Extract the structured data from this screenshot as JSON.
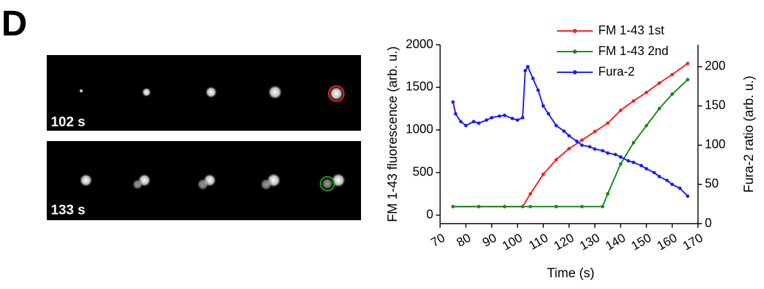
{
  "panel_label": "D",
  "images": [
    {
      "label": "102 s"
    },
    {
      "label": "133 s"
    }
  ],
  "chart_data": {
    "type": "line",
    "ylabel": "FM 1-43 fluorescence (arb. u.)",
    "y2label": "Fura-2 ratio (arb. u.)",
    "xlabel": "Time (s)",
    "xlim": [
      70,
      170
    ],
    "xticks": [
      70,
      80,
      90,
      100,
      110,
      120,
      130,
      140,
      150,
      160,
      170
    ],
    "ylim": [
      -100,
      2000
    ],
    "yticks": [
      0,
      500,
      1000,
      1500,
      2000
    ],
    "y2lim": [
      0,
      228
    ],
    "y2ticks": [
      0,
      50,
      100,
      150,
      200
    ],
    "legend": "top",
    "series": [
      {
        "name": "FM 1-43 1st",
        "color": "#ff1a1a",
        "x": [
          75,
          85,
          95,
          102,
          105,
          110,
          115,
          120,
          125,
          130,
          135,
          140,
          145,
          150,
          155,
          160,
          166
        ],
        "values": [
          100,
          100,
          100,
          100,
          250,
          480,
          650,
          780,
          880,
          980,
          1080,
          1230,
          1340,
          1440,
          1550,
          1650,
          1780
        ]
      },
      {
        "name": "FM 1-43 2nd",
        "color": "#128a12",
        "x": [
          75,
          85,
          95,
          105,
          115,
          125,
          133,
          135,
          140,
          145,
          150,
          155,
          160,
          166
        ],
        "values": [
          100,
          100,
          100,
          100,
          100,
          100,
          100,
          250,
          600,
          850,
          1050,
          1250,
          1420,
          1590
        ]
      },
      {
        "name": "Fura-2",
        "color": "#1a1aff",
        "axis": "y2",
        "x": [
          75,
          76,
          78,
          80,
          83,
          85,
          88,
          90,
          93,
          95,
          98,
          100,
          102,
          103,
          104,
          106,
          108,
          110,
          112,
          115,
          118,
          120,
          123,
          125,
          128,
          130,
          133,
          135,
          138,
          140,
          143,
          145,
          148,
          150,
          153,
          155,
          158,
          160,
          163,
          166
        ],
        "values": [
          155,
          140,
          130,
          125,
          130,
          128,
          132,
          135,
          137,
          138,
          134,
          132,
          135,
          195,
          200,
          185,
          170,
          150,
          140,
          125,
          118,
          112,
          105,
          100,
          98,
          95,
          93,
          90,
          88,
          85,
          80,
          78,
          74,
          70,
          65,
          60,
          55,
          50,
          45,
          35
        ]
      }
    ]
  }
}
